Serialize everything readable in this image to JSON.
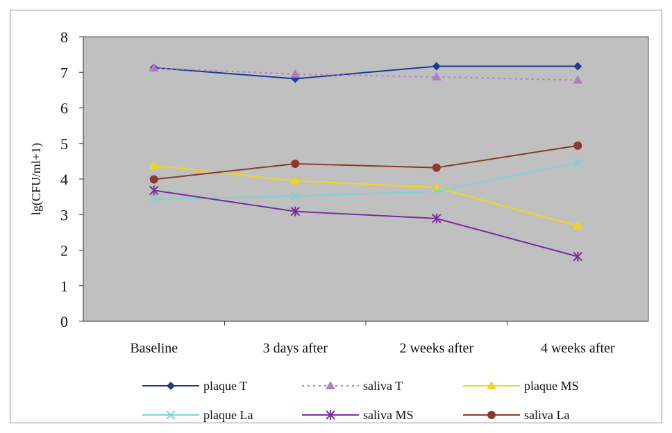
{
  "chart_data": {
    "type": "line",
    "title": "",
    "xlabel": "",
    "ylabel": "lg(CFU/ml+1)",
    "ylim": [
      0,
      8
    ],
    "yticks": [
      "0",
      "1",
      "2",
      "3",
      "4",
      "5",
      "6",
      "7",
      "8"
    ],
    "categories": [
      "Baseline",
      "3 days after",
      "2 weeks after",
      "4 weeks after"
    ],
    "grid": false,
    "legend_position": "bottom",
    "plot_background": "#c0c0c0",
    "series": [
      {
        "name": "plaque T",
        "values": [
          7.13,
          6.82,
          7.17,
          7.17
        ],
        "color": "#1f3a93",
        "marker": "diamond",
        "dashed": false
      },
      {
        "name": "saliva T",
        "values": [
          7.12,
          6.95,
          6.87,
          6.78
        ],
        "color": "#b07cc6",
        "marker": "triangle",
        "dashed": true
      },
      {
        "name": "plaque MS",
        "values": [
          4.38,
          3.95,
          3.76,
          2.68
        ],
        "color": "#f2d51b",
        "marker": "triangle",
        "dashed": false
      },
      {
        "name": "plaque La",
        "values": [
          3.43,
          3.52,
          3.65,
          4.46
        ],
        "color": "#7fd3d6",
        "marker": "x",
        "dashed": false
      },
      {
        "name": "saliva MS",
        "values": [
          3.68,
          3.09,
          2.89,
          1.82
        ],
        "color": "#7a2f9e",
        "marker": "asterisk",
        "dashed": false
      },
      {
        "name": "saliva La",
        "values": [
          3.99,
          4.43,
          4.32,
          4.94
        ],
        "color": "#8b3a2e",
        "marker": "circle",
        "dashed": false
      }
    ]
  }
}
